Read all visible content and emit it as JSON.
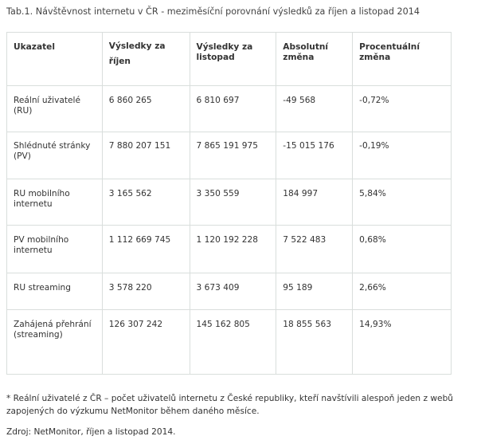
{
  "caption": "Tab.1. Návštěvnost internetu v ČR - meziměsíční porovnání výsledků za říjen a listopad 2014",
  "table": {
    "headers": [
      "Ukazatel",
      "Výsledky za říjen",
      "Výsledky za listopad",
      "Absolutní změna",
      "Procentuální změna"
    ],
    "rows": [
      [
        "Reální uživatelé (RU)",
        "6 860 265",
        "6 810 697",
        "-49 568",
        "-0,72%"
      ],
      [
        "Shlédnuté stránky (PV)",
        "7 880 207 151",
        "7 865 191 975",
        "-15 015 176",
        "-0,19%"
      ],
      [
        "RU mobilního internetu",
        "3 165 562",
        "3 350 559",
        "184 997",
        "5,84%"
      ],
      [
        "PV mobilního internetu",
        "1 112 669 745",
        "1 120 192 228",
        "7 522 483",
        "0,68%"
      ],
      [
        "RU streaming",
        "3 578 220",
        "3 673 409",
        "95 189",
        "2,66%"
      ],
      [
        "Zahájená přehrání (streaming)",
        "126 307 242",
        "145 162 805",
        "18 855 563",
        "14,93%"
      ]
    ]
  },
  "footnote": "* Reální uživatelé z ČR – počet uživatelů internetu z České republiky, kteří navštívili alespoň jeden z webů zapojených do výzkumu NetMonitor během daného měsíce.",
  "source": "Zdroj: NetMonitor, říjen a listopad 2014."
}
